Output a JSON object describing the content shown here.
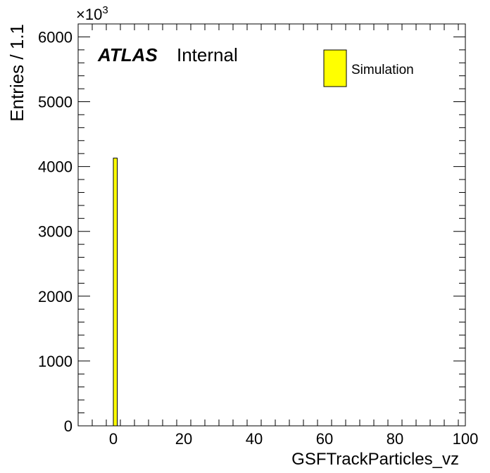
{
  "chart_data": {
    "type": "bar",
    "xlabel": "GSFTrackParticles_vz",
    "ylabel": "Entries / 1.1",
    "y_multiplier_label": "×10",
    "y_multiplier_exponent": "3",
    "xlim": [
      -10,
      100
    ],
    "ylim": [
      0,
      6200
    ],
    "x_ticks": [
      0,
      20,
      40,
      60,
      80,
      100
    ],
    "y_ticks": [
      0,
      1000,
      2000,
      3000,
      4000,
      5000,
      6000
    ],
    "x_tick_labels": [
      "0",
      "20",
      "40",
      "60",
      "80",
      "100"
    ],
    "y_tick_labels": [
      "0",
      "1000",
      "2000",
      "3000",
      "4000",
      "5000",
      "6000"
    ],
    "bin_width": 1.1,
    "bars": [
      {
        "x_low": 0.0,
        "x_high": 1.1,
        "value": 4130
      }
    ],
    "series": [
      {
        "name": "Simulation",
        "color": "#ffff00"
      }
    ],
    "legend_position": "top-right",
    "grid": false
  },
  "atlas_label": {
    "bold": "ATLAS",
    "text": "Internal"
  }
}
